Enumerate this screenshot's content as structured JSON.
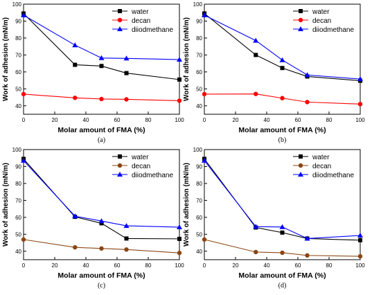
{
  "chart_data": [
    {
      "type": "line",
      "panel_label": "(a)",
      "xlabel": "Molar amount of FMA (%)",
      "ylabel": "Work of adhesion (mN/m)",
      "xlim": [
        0,
        100
      ],
      "ylim": [
        35,
        100
      ],
      "xticks": [
        "0",
        "20",
        "40",
        "60",
        "80",
        "100"
      ],
      "yticks": [
        "40",
        "50",
        "60",
        "70",
        "80",
        "90",
        "100"
      ],
      "x": [
        0,
        33,
        50,
        66,
        100
      ],
      "series": [
        {
          "name": "water",
          "values": [
            94.5,
            64.2,
            63.5,
            59.3,
            55.5
          ],
          "color": "#000000",
          "marker": "square"
        },
        {
          "name": "decan",
          "values": [
            46.9,
            44.7,
            44.0,
            43.8,
            43.0
          ],
          "color": "#ff0000",
          "marker": "circle"
        },
        {
          "name": "diiodmethane",
          "values": [
            93.5,
            75.8,
            68.2,
            68.0,
            67.3
          ],
          "color": "#0000ff",
          "marker": "triangle"
        }
      ]
    },
    {
      "type": "line",
      "panel_label": "(b)",
      "xlabel": "Molar amount of FMA (%)",
      "ylabel": "Work of adhesion (mN/m)",
      "xlim": [
        0,
        100
      ],
      "ylim": [
        35,
        100
      ],
      "xticks": [
        "0",
        "20",
        "40",
        "60",
        "80",
        "100"
      ],
      "yticks": [
        "40",
        "50",
        "60",
        "70",
        "80",
        "90",
        "100"
      ],
      "x": [
        0,
        33,
        50,
        66,
        100
      ],
      "series": [
        {
          "name": "water",
          "values": [
            94.5,
            70.0,
            62.3,
            57.3,
            54.8
          ],
          "color": "#000000",
          "marker": "square"
        },
        {
          "name": "decan",
          "values": [
            46.9,
            47.0,
            44.5,
            42.2,
            41.0
          ],
          "color": "#ff0000",
          "marker": "circle"
        },
        {
          "name": "diiodmethane",
          "values": [
            93.5,
            78.5,
            67.0,
            58.2,
            55.8
          ],
          "color": "#0000ff",
          "marker": "triangle"
        }
      ]
    },
    {
      "type": "line",
      "panel_label": "(c)",
      "xlabel": "Molar amount of FMA (%)",
      "ylabel": "Work of adhesion (mN/m)",
      "xlim": [
        0,
        100
      ],
      "ylim": [
        35,
        100
      ],
      "xticks": [
        "0",
        "20",
        "40",
        "60",
        "80",
        "100"
      ],
      "yticks": [
        "40",
        "50",
        "60",
        "70",
        "80",
        "90",
        "100"
      ],
      "x": [
        0,
        33,
        50,
        66,
        100
      ],
      "series": [
        {
          "name": "water",
          "values": [
            94.5,
            60.3,
            56.5,
            47.5,
            47.3
          ],
          "color": "#000000",
          "marker": "square"
        },
        {
          "name": "decan",
          "values": [
            46.9,
            42.3,
            41.6,
            41.0,
            39.0
          ],
          "color": "#8b4513",
          "marker": "circle"
        },
        {
          "name": "diiodmethane",
          "values": [
            93.5,
            60.7,
            57.8,
            55.0,
            54.2
          ],
          "color": "#0000ff",
          "marker": "triangle"
        }
      ]
    },
    {
      "type": "line",
      "panel_label": "(d)",
      "xlabel": "Molar amount of FMA (%)",
      "ylabel": "Work of adhesion (mN/m)",
      "xlim": [
        0,
        100
      ],
      "ylim": [
        35,
        100
      ],
      "xticks": [
        "0",
        "20",
        "40",
        "60",
        "80",
        "100"
      ],
      "yticks": [
        "40",
        "50",
        "60",
        "70",
        "80",
        "90",
        "100"
      ],
      "x": [
        0,
        33,
        50,
        66,
        100
      ],
      "series": [
        {
          "name": "water",
          "values": [
            94.5,
            54.0,
            51.0,
            47.5,
            46.5
          ],
          "color": "#000000",
          "marker": "square"
        },
        {
          "name": "decan",
          "values": [
            46.9,
            39.5,
            39.1,
            37.5,
            37.0
          ],
          "color": "#8b4513",
          "marker": "circle"
        },
        {
          "name": "diiodmethane",
          "values": [
            93.5,
            54.5,
            54.3,
            47.5,
            49.3
          ],
          "color": "#0000ff",
          "marker": "triangle"
        }
      ]
    }
  ]
}
